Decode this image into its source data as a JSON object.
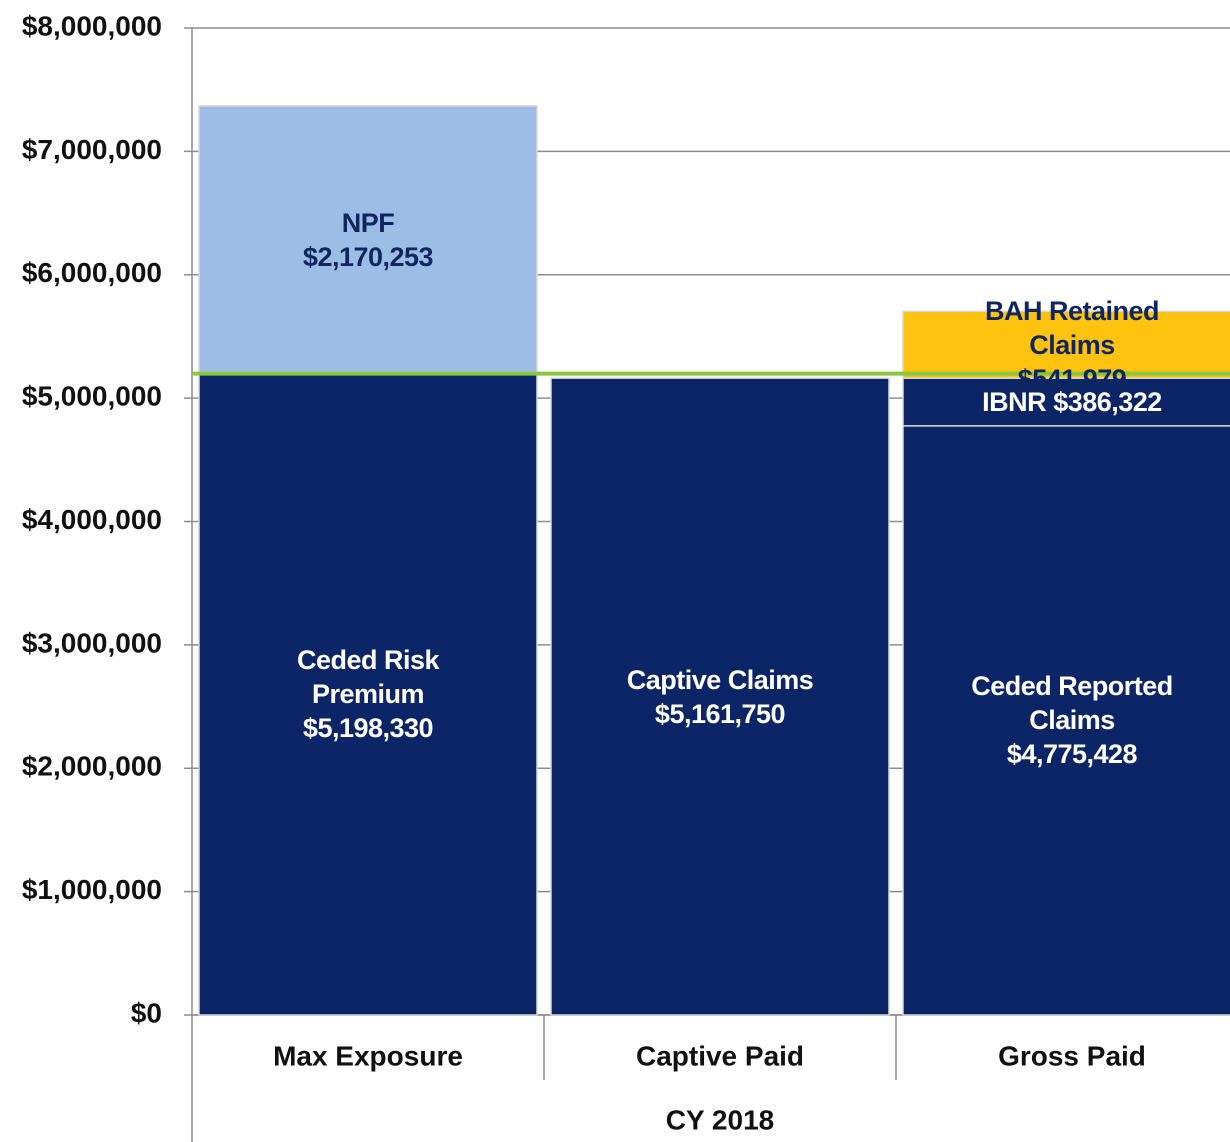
{
  "chart_data": {
    "type": "stacked_bar",
    "categories": [
      "Max Exposure",
      "Captive Paid",
      "Gross Paid"
    ],
    "group_label": "CY 2018",
    "series": [
      {
        "name": "Ceded Risk Premium",
        "color": "#0b2566",
        "values": [
          5198330,
          null,
          null
        ],
        "value_labels": [
          "$5,198,330",
          null,
          null
        ]
      },
      {
        "name": "NPF",
        "color": "#9dbde6",
        "values": [
          2170253,
          null,
          null
        ],
        "value_labels": [
          "$2,170,253",
          null,
          null
        ]
      },
      {
        "name": "Captive Claims",
        "color": "#0b2566",
        "values": [
          null,
          5161750,
          null
        ],
        "value_labels": [
          null,
          "$5,161,750",
          null
        ]
      },
      {
        "name": "Ceded Reported Claims",
        "color": "#0b2566",
        "values": [
          null,
          null,
          4775428
        ],
        "value_labels": [
          null,
          null,
          "$4,775,428"
        ]
      },
      {
        "name": "IBNR",
        "color": "#0b2566",
        "values": [
          null,
          null,
          386322
        ],
        "value_labels": [
          null,
          null,
          "$386,322"
        ]
      },
      {
        "name": "BAH Retained Claims",
        "color": "#ffc20e",
        "values": [
          null,
          null,
          541979
        ],
        "value_labels": [
          null,
          null,
          "$541,979"
        ]
      }
    ],
    "ylim": [
      0,
      8000000
    ],
    "yticks": [
      {
        "value": 0,
        "label": "$0"
      },
      {
        "value": 1000000,
        "label": "$1,000,000"
      },
      {
        "value": 2000000,
        "label": "$2,000,000"
      },
      {
        "value": 3000000,
        "label": "$3,000,000"
      },
      {
        "value": 4000000,
        "label": "$4,000,000"
      },
      {
        "value": 5000000,
        "label": "$5,000,000"
      },
      {
        "value": 6000000,
        "label": "$6,000,000"
      },
      {
        "value": 7000000,
        "label": "$7,000,000"
      },
      {
        "value": 8000000,
        "label": "$8,000,000"
      }
    ],
    "grid": true,
    "reference_line": {
      "value": 5198330,
      "color": "#8cc63f"
    }
  }
}
